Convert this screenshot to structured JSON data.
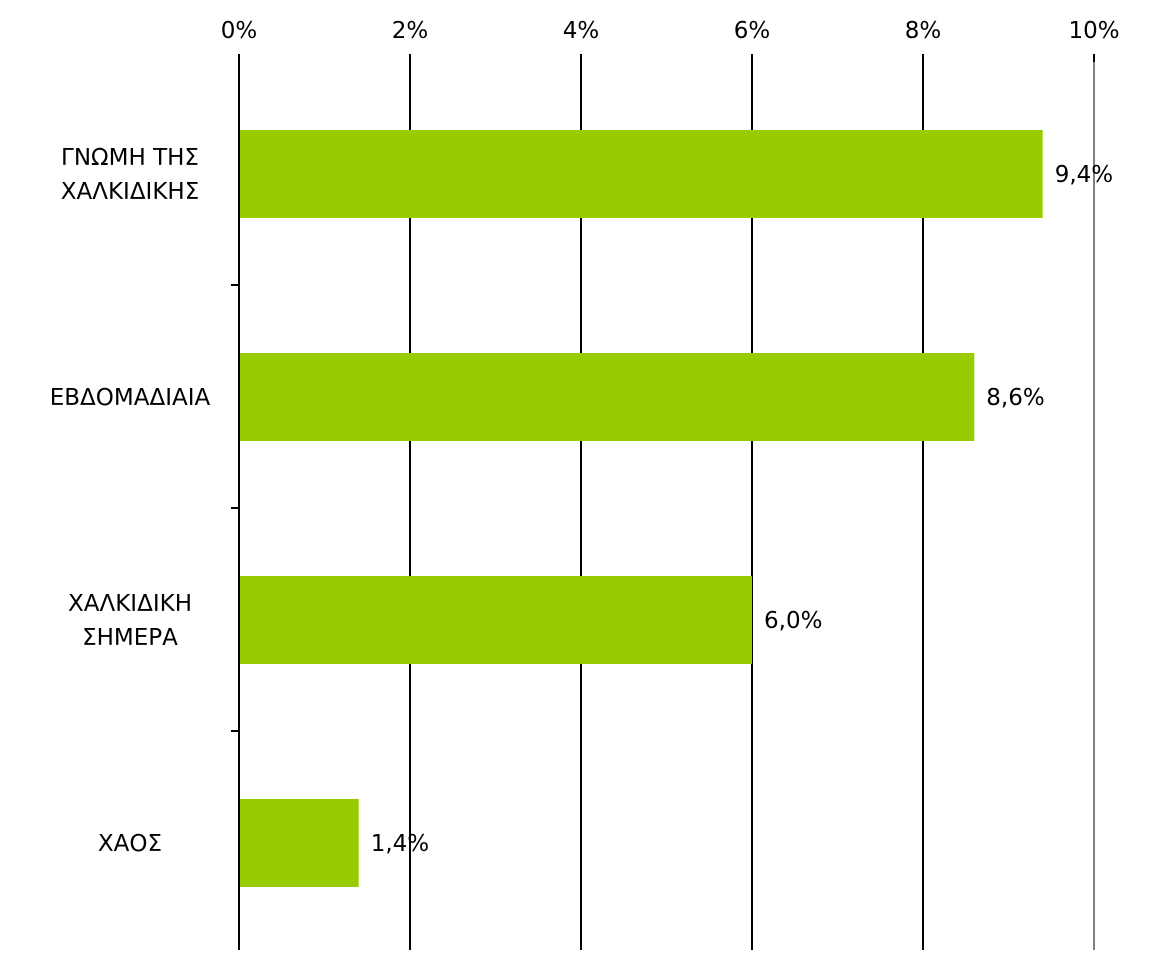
{
  "chart_data": {
    "type": "bar",
    "orientation": "horizontal",
    "categories": [
      "ΓΝΩΜΗ ΤΗΣ ΧΑΛΚΙΔΙΚΗΣ",
      "ΕΒΔΟΜΑΔΙΑΙΑ",
      "ΧΑΛΚΙΔΙΚΗ ΣΗΜΕΡΑ",
      "ΧΑΟΣ"
    ],
    "category_label_lines": [
      [
        "ΓΝΩΜΗ ΤΗΣ",
        "ΧΑΛΚΙΔΙΚΗΣ"
      ],
      [
        "ΕΒΔΟΜΑΔΙΑΙΑ"
      ],
      [
        "ΧΑΛΚΙΔΙΚΗ",
        "ΣΗΜΕΡΑ"
      ],
      [
        "ΧΑΟΣ"
      ]
    ],
    "values": [
      9.4,
      8.6,
      6.0,
      1.4
    ],
    "value_labels": [
      "9,4%",
      "8,6%",
      "6,0%",
      "1,4%"
    ],
    "xlim": [
      0,
      10
    ],
    "x_ticks": [
      0,
      2,
      4,
      6,
      8,
      10
    ],
    "x_tick_labels": [
      "0%",
      "2%",
      "4%",
      "6%",
      "8%",
      "10%"
    ],
    "x_axis_position": "top",
    "grid": "vertical",
    "legend": "none",
    "title": "",
    "xlabel": "",
    "ylabel": "",
    "bar_color": "#99CC00",
    "grid_color": "#000000",
    "last_grid_color": "#808080"
  }
}
